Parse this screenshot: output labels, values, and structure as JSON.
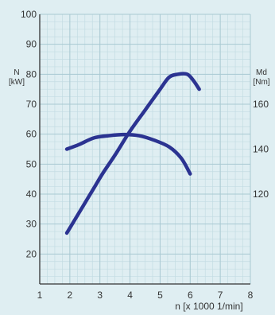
{
  "chart_data": {
    "type": "line",
    "title": "",
    "xlabel": "n [x 1000 1/min]",
    "left_axis_label": [
      "N",
      "[kW]"
    ],
    "right_axis_label": [
      "Md",
      "[Nm]"
    ],
    "xlim": [
      1,
      8
    ],
    "ylim_left": [
      10,
      100
    ],
    "ylim_right": [
      80,
      200
    ],
    "x_ticks": [
      1,
      2,
      3,
      4,
      5,
      6,
      7,
      8
    ],
    "y_ticks_left": [
      20,
      30,
      40,
      50,
      60,
      70,
      80,
      90,
      100
    ],
    "y_ticks_right": [
      120,
      140,
      160
    ],
    "grid": true,
    "colors": {
      "background": "#dfeef2",
      "grid_minor": "#c3dce3",
      "grid_major": "#a9c9d2",
      "axis": "#333333",
      "series": "#2b3391"
    },
    "series": [
      {
        "axis": "left",
        "unit": "kW",
        "x": [
          1.9,
          2.2,
          2.5,
          2.8,
          3.1,
          3.5,
          4.0,
          4.5,
          5.0,
          5.3,
          5.6,
          5.9,
          6.1,
          6.3
        ],
        "y": [
          27,
          32,
          37,
          42,
          47,
          53,
          61,
          68,
          75,
          79,
          80,
          80,
          78,
          75
        ]
      },
      {
        "axis": "right",
        "unit": "Nm",
        "x": [
          1.9,
          2.3,
          2.8,
          3.3,
          3.8,
          4.3,
          4.8,
          5.3,
          5.7,
          6.0
        ],
        "y": [
          140,
          142,
          145,
          146,
          146.5,
          146,
          144,
          141,
          136,
          129
        ]
      }
    ]
  }
}
